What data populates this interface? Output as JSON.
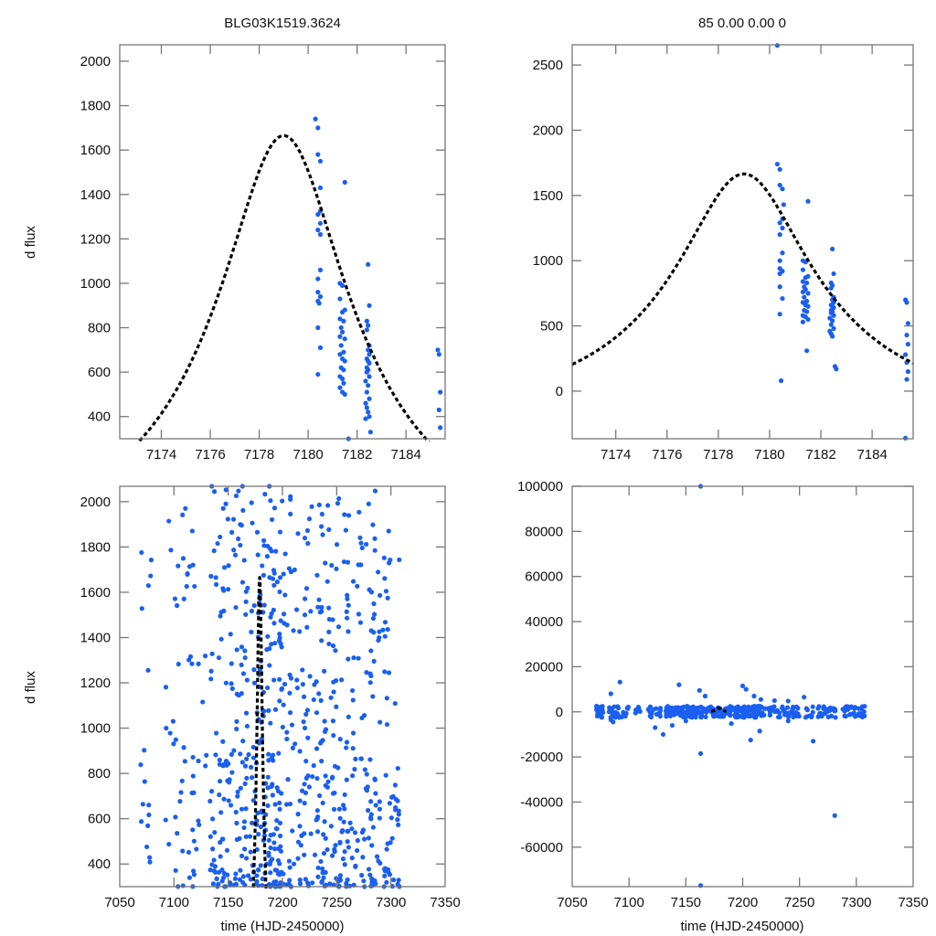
{
  "chart_data": [
    {
      "id": "top-left",
      "type": "scatter",
      "title": "BLG03K1519.3624",
      "xlabel": "",
      "ylabel": "d flux",
      "xlim": [
        7172.3,
        7185.6
      ],
      "ylim": [
        300,
        2074
      ],
      "xticks": [
        7174,
        7176,
        7178,
        7180,
        7182,
        7184
      ],
      "yticks": [
        400,
        600,
        800,
        1000,
        1200,
        1400,
        1600,
        1800,
        2000
      ],
      "model": {
        "t0": 7179.0,
        "peak": 1665,
        "base": -180,
        "tE": 9.0,
        "u0": 0.29
      },
      "series": [
        {
          "name": "data",
          "color": "#1a5ff0",
          "points": [
            [
              7180.3,
              1740
            ],
            [
              7180.4,
              1700
            ],
            [
              7180.4,
              1580
            ],
            [
              7180.5,
              1550
            ],
            [
              7180.5,
              1430
            ],
            [
              7181.5,
              1455
            ],
            [
              7180.5,
              1325
            ],
            [
              7180.4,
              1310
            ],
            [
              7180.5,
              1270
            ],
            [
              7180.4,
              1240
            ],
            [
              7180.5,
              1220
            ],
            [
              7180.5,
              1060
            ],
            [
              7180.4,
              1020
            ],
            [
              7180.4,
              960
            ],
            [
              7180.5,
              940
            ],
            [
              7180.4,
              920
            ],
            [
              7180.45,
              910
            ],
            [
              7180.4,
              800
            ],
            [
              7180.5,
              710
            ],
            [
              7180.4,
              590
            ],
            [
              7181.3,
              1000
            ],
            [
              7181.4,
              990
            ],
            [
              7181.3,
              930
            ],
            [
              7181.5,
              880
            ],
            [
              7181.4,
              870
            ],
            [
              7181.3,
              840
            ],
            [
              7181.45,
              830
            ],
            [
              7181.35,
              800
            ],
            [
              7181.4,
              780
            ],
            [
              7181.3,
              760
            ],
            [
              7181.5,
              750
            ],
            [
              7181.35,
              720
            ],
            [
              7181.45,
              690
            ],
            [
              7181.3,
              680
            ],
            [
              7181.4,
              660
            ],
            [
              7181.5,
              650
            ],
            [
              7181.35,
              620
            ],
            [
              7181.45,
              610
            ],
            [
              7181.3,
              580
            ],
            [
              7181.4,
              570
            ],
            [
              7181.45,
              550
            ],
            [
              7181.3,
              530
            ],
            [
              7181.4,
              510
            ],
            [
              7181.5,
              500
            ],
            [
              7181.65,
              300
            ],
            [
              7182.45,
              1085
            ],
            [
              7182.5,
              900
            ],
            [
              7182.4,
              830
            ],
            [
              7182.45,
              810
            ],
            [
              7182.4,
              790
            ],
            [
              7182.5,
              720
            ],
            [
              7182.45,
              700
            ],
            [
              7182.5,
              680
            ],
            [
              7182.4,
              660
            ],
            [
              7182.45,
              650
            ],
            [
              7182.5,
              640
            ],
            [
              7182.4,
              620
            ],
            [
              7182.45,
              610
            ],
            [
              7182.4,
              600
            ],
            [
              7182.5,
              580
            ],
            [
              7182.35,
              560
            ],
            [
              7182.45,
              540
            ],
            [
              7182.4,
              510
            ],
            [
              7182.5,
              480
            ],
            [
              7182.35,
              460
            ],
            [
              7182.4,
              440
            ],
            [
              7182.45,
              420
            ],
            [
              7182.5,
              400
            ],
            [
              7182.35,
              390
            ],
            [
              7182.55,
              330
            ],
            [
              7185.3,
              700
            ],
            [
              7185.35,
              680
            ],
            [
              7185.4,
              510
            ],
            [
              7185.35,
              430
            ],
            [
              7185.4,
              350
            ]
          ]
        }
      ]
    },
    {
      "id": "top-right",
      "type": "scatter",
      "title": "85  0.00  0.00  0",
      "xlabel": "",
      "ylabel": "",
      "xlim": [
        7172.3,
        7185.6
      ],
      "ylim": [
        -365,
        2655
      ],
      "xticks": [
        7174,
        7176,
        7178,
        7180,
        7182,
        7184
      ],
      "yticks": [
        0,
        500,
        1000,
        1500,
        2000,
        2500
      ],
      "model": {
        "t0": 7179.0,
        "peak": 1665,
        "base": -180,
        "tE": 9.0,
        "u0": 0.29
      },
      "series": [
        {
          "name": "data",
          "color": "#1a5ff0",
          "points": [
            [
              7180.3,
              2650
            ],
            [
              7180.3,
              1740
            ],
            [
              7180.4,
              1700
            ],
            [
              7180.4,
              1580
            ],
            [
              7180.5,
              1550
            ],
            [
              7180.55,
              1430
            ],
            [
              7181.5,
              1455
            ],
            [
              7180.5,
              1320
            ],
            [
              7180.4,
              1290
            ],
            [
              7180.5,
              1250
            ],
            [
              7180.4,
              1200
            ],
            [
              7180.5,
              1060
            ],
            [
              7180.4,
              1000
            ],
            [
              7180.4,
              940
            ],
            [
              7180.5,
              920
            ],
            [
              7180.4,
              900
            ],
            [
              7180.4,
              800
            ],
            [
              7180.5,
              710
            ],
            [
              7180.4,
              590
            ],
            [
              7180.45,
              80
            ],
            [
              7181.3,
              1000
            ],
            [
              7181.4,
              990
            ],
            [
              7181.3,
              930
            ],
            [
              7181.5,
              880
            ],
            [
              7181.4,
              870
            ],
            [
              7181.3,
              840
            ],
            [
              7181.45,
              830
            ],
            [
              7181.35,
              800
            ],
            [
              7181.4,
              780
            ],
            [
              7181.3,
              760
            ],
            [
              7181.5,
              750
            ],
            [
              7181.35,
              720
            ],
            [
              7181.45,
              690
            ],
            [
              7181.3,
              680
            ],
            [
              7181.4,
              660
            ],
            [
              7181.5,
              650
            ],
            [
              7181.35,
              620
            ],
            [
              7181.45,
              610
            ],
            [
              7181.3,
              580
            ],
            [
              7181.4,
              570
            ],
            [
              7181.5,
              550
            ],
            [
              7181.3,
              530
            ],
            [
              7181.45,
              310
            ],
            [
              7182.45,
              1090
            ],
            [
              7182.5,
              900
            ],
            [
              7182.4,
              830
            ],
            [
              7182.45,
              810
            ],
            [
              7182.4,
              790
            ],
            [
              7182.5,
              720
            ],
            [
              7182.45,
              700
            ],
            [
              7182.5,
              680
            ],
            [
              7182.4,
              660
            ],
            [
              7182.45,
              650
            ],
            [
              7182.5,
              640
            ],
            [
              7182.4,
              620
            ],
            [
              7182.45,
              610
            ],
            [
              7182.4,
              600
            ],
            [
              7182.5,
              580
            ],
            [
              7182.35,
              560
            ],
            [
              7182.45,
              540
            ],
            [
              7182.4,
              510
            ],
            [
              7182.5,
              480
            ],
            [
              7182.35,
              460
            ],
            [
              7182.4,
              440
            ],
            [
              7182.45,
              420
            ],
            [
              7182.55,
              190
            ],
            [
              7182.6,
              170
            ],
            [
              7185.3,
              700
            ],
            [
              7185.35,
              680
            ],
            [
              7185.4,
              520
            ],
            [
              7185.35,
              430
            ],
            [
              7185.4,
              360
            ],
            [
              7185.3,
              280
            ],
            [
              7185.35,
              220
            ],
            [
              7185.4,
              150
            ],
            [
              7185.35,
              90
            ],
            [
              7185.3,
              -360
            ]
          ]
        }
      ]
    },
    {
      "id": "bottom-left",
      "type": "scatter",
      "title": "",
      "xlabel": "time (HJD-2450000)",
      "ylabel": "d flux",
      "xlim": [
        7050,
        7350
      ],
      "ylim": [
        300,
        2068
      ],
      "xticks": [
        7050,
        7100,
        7150,
        7200,
        7250,
        7300,
        7350
      ],
      "yticks": [
        400,
        600,
        800,
        1000,
        1200,
        1400,
        1600,
        1800,
        2000
      ],
      "model": {
        "t0": 7179.0,
        "peak": 1665,
        "base": -180,
        "tE": 9.0,
        "u0": 0.29
      },
      "series": [
        {
          "name": "data",
          "color": "#1a5ff0",
          "points": "generated-dense-scatter 7068-7308"
        }
      ]
    },
    {
      "id": "bottom-right",
      "type": "scatter",
      "title": "",
      "xlabel": "time (HJD-2450000)",
      "ylabel": "",
      "xlim": [
        7050,
        7350
      ],
      "ylim": [
        -77500,
        100000
      ],
      "xticks": [
        7050,
        7100,
        7150,
        7200,
        7250,
        7300,
        7350
      ],
      "yticks": [
        -60000,
        -40000,
        -20000,
        0,
        20000,
        40000,
        60000,
        80000,
        100000
      ],
      "model": {
        "t0": 7179.0,
        "peak": 1665,
        "base": -180,
        "tE": 9.0,
        "u0": 0.29
      },
      "series": [
        {
          "name": "data",
          "color": "#1a5ff0",
          "points": [
            [
              7163,
              100000
            ],
            [
              7163,
              -77000
            ],
            [
              7281,
              -46000
            ],
            [
              7163,
              -18500
            ],
            [
              7092,
              13200
            ],
            [
              7144,
              12000
            ],
            [
              7162,
              9500
            ],
            [
              7200,
              11500
            ],
            [
              7203,
              10000
            ],
            [
              7084,
              8000
            ],
            [
              7210,
              7000
            ],
            [
              7254,
              6500
            ],
            [
              7167,
              7000
            ],
            [
              7216,
              5500
            ],
            [
              7228,
              5000
            ],
            [
              7240,
              4800
            ],
            [
              7237,
              -1300
            ],
            [
              7190,
              -5200
            ],
            [
              7215,
              -8500
            ],
            [
              7240,
              -4000
            ],
            [
              7123,
              -7000
            ],
            [
              7138,
              -6000
            ],
            [
              7130,
              -10000
            ],
            [
              7262,
              -13000
            ],
            [
              7207,
              -12500
            ],
            [
              7150,
              -4000
            ],
            [
              7084,
              -3500
            ],
            [
              7086,
              -4500
            ],
            [
              7180,
              1500
            ],
            [
              7185,
              1200
            ]
          ]
        }
      ]
    }
  ],
  "labels": {
    "title_left": "BLG03K1519.3624",
    "title_right": "85  0.00  0.00  0",
    "ylabel_top": "d flux",
    "ylabel_bottom": "d flux",
    "xlabel_left": "time (HJD-2450000)",
    "xlabel_right": "time (HJD-2450000)"
  }
}
